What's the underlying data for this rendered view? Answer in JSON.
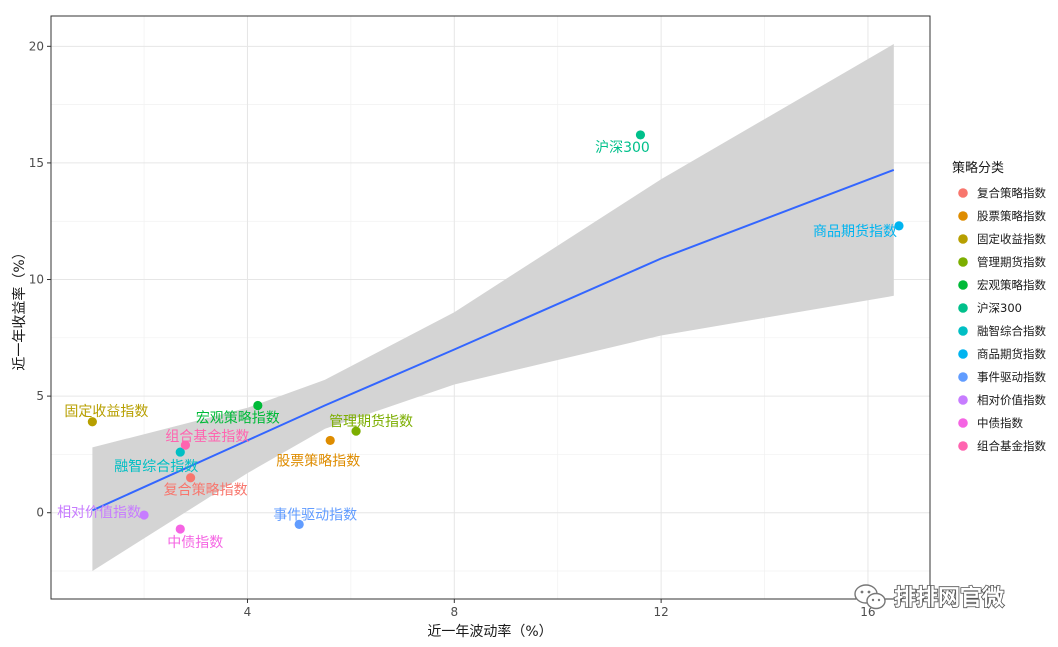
{
  "chart_data": {
    "type": "scatter",
    "title": "",
    "xlabel": "近一年波动率（%）",
    "ylabel": "近一年收益率（%）",
    "xlim": [
      0.2,
      17.2
    ],
    "ylim": [
      -3.7,
      21.3
    ],
    "x_ticks": [
      4,
      8,
      12,
      16
    ],
    "x_tick_labels": [
      "4",
      "8",
      "12",
      "16"
    ],
    "y_ticks": [
      0,
      5,
      10,
      15,
      20
    ],
    "y_tick_labels": [
      "0",
      "5",
      "10",
      "15",
      "20"
    ],
    "grid": true,
    "legend": {
      "title": "策略分类",
      "position": "right"
    },
    "points": [
      {
        "name": "复合策略指数",
        "x": 2.9,
        "y": 1.5,
        "color": "#F8766D"
      },
      {
        "name": "股票策略指数",
        "x": 5.6,
        "y": 3.1,
        "color": "#DE8C00"
      },
      {
        "name": "固定收益指数",
        "x": 1.0,
        "y": 3.9,
        "color": "#B79F00"
      },
      {
        "name": "管理期货指数",
        "x": 6.1,
        "y": 3.5,
        "color": "#7CAE00"
      },
      {
        "name": "宏观策略指数",
        "x": 4.2,
        "y": 4.6,
        "color": "#00BA38"
      },
      {
        "name": "沪深300",
        "x": 11.6,
        "y": 16.2,
        "color": "#00C08B"
      },
      {
        "name": "融智综合指数",
        "x": 2.7,
        "y": 2.6,
        "color": "#00BFC4"
      },
      {
        "name": "商品期货指数",
        "x": 16.6,
        "y": 12.3,
        "color": "#00B4F0"
      },
      {
        "name": "事件驱动指数",
        "x": 5.0,
        "y": -0.5,
        "color": "#619CFF"
      },
      {
        "name": "相对价值指数",
        "x": 2.0,
        "y": -0.1,
        "color": "#C77CFF"
      },
      {
        "name": "中债指数",
        "x": 2.7,
        "y": -0.7,
        "color": "#F564E3"
      },
      {
        "name": "组合基金指数",
        "x": 2.8,
        "y": 2.9,
        "color": "#FF64B0"
      }
    ],
    "trend_line": {
      "method": "lm",
      "color": "#3366FF",
      "fill": "#D4D4D4",
      "points": [
        {
          "x": 1.0,
          "y": 0.1,
          "lower": -2.5,
          "upper": 2.8
        },
        {
          "x": 4.0,
          "y": 3.1,
          "lower": 1.7,
          "upper": 4.5
        },
        {
          "x": 5.5,
          "y": 4.6,
          "lower": 3.6,
          "upper": 5.7
        },
        {
          "x": 8.0,
          "y": 7.0,
          "lower": 5.5,
          "upper": 8.6
        },
        {
          "x": 12.0,
          "y": 10.9,
          "lower": 7.6,
          "upper": 14.3
        },
        {
          "x": 16.5,
          "y": 14.7,
          "lower": 9.3,
          "upper": 20.1
        }
      ]
    }
  },
  "watermark": {
    "text": "排排网官微",
    "icon": "wechat-icon"
  }
}
